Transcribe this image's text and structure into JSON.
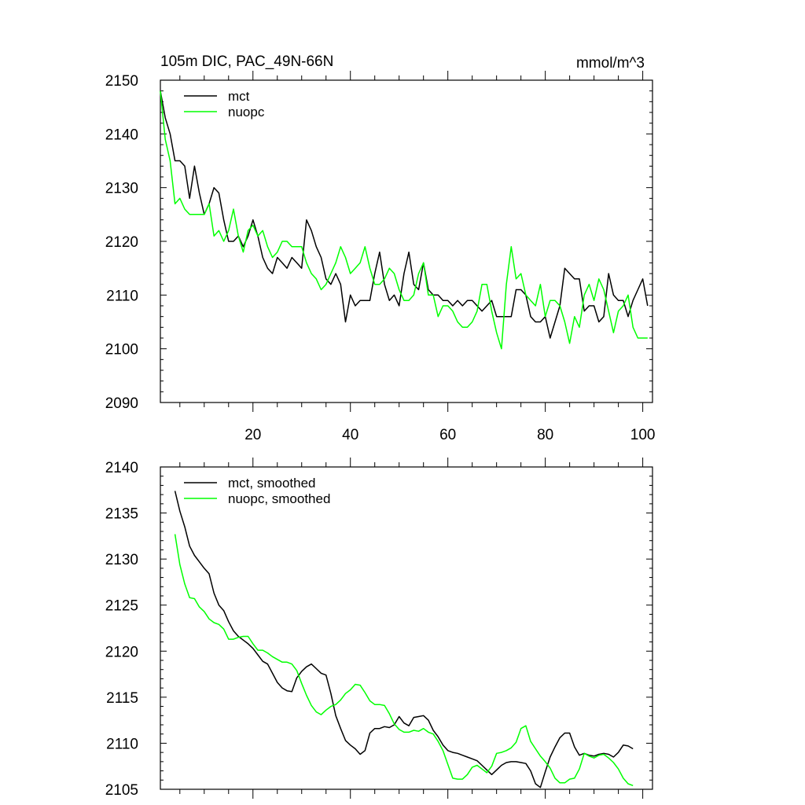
{
  "chart_data": [
    {
      "type": "line",
      "title": "105m DIC, PAC_49N-66N",
      "units": "mmol/m^3",
      "xlim": [
        1,
        102
      ],
      "ylim": [
        2090,
        2150
      ],
      "x_ticks": [
        20,
        40,
        60,
        80,
        100
      ],
      "y_ticks": [
        2090,
        2100,
        2110,
        2120,
        2130,
        2140,
        2150
      ],
      "x_tick_labels": [
        "20",
        "40",
        "60",
        "80",
        "100"
      ],
      "y_tick_labels": [
        "2090",
        "2100",
        "2110",
        "2120",
        "2130",
        "2140",
        "2150"
      ],
      "legend": "top-left",
      "series": [
        {
          "name": "mct",
          "color": "#000000",
          "x": [
            1,
            2,
            3,
            4,
            5,
            6,
            7,
            8,
            9,
            10,
            11,
            12,
            13,
            14,
            15,
            16,
            17,
            18,
            19,
            20,
            21,
            22,
            23,
            24,
            25,
            26,
            27,
            28,
            29,
            30,
            31,
            32,
            33,
            34,
            35,
            36,
            37,
            38,
            39,
            40,
            41,
            42,
            43,
            44,
            45,
            46,
            47,
            48,
            49,
            50,
            51,
            52,
            53,
            54,
            55,
            56,
            57,
            58,
            59,
            60,
            61,
            62,
            63,
            64,
            65,
            66,
            67,
            68,
            69,
            70,
            71,
            72,
            73,
            74,
            75,
            76,
            77,
            78,
            79,
            80,
            81,
            82,
            83,
            84,
            85,
            86,
            87,
            88,
            89,
            90,
            91,
            92,
            93,
            94,
            95,
            96,
            97,
            98,
            99,
            100,
            101
          ],
          "values": [
            2148,
            2143,
            2140,
            2135,
            2135,
            2134,
            2128,
            2134,
            2129,
            2125,
            2127,
            2130,
            2129,
            2124,
            2120,
            2120,
            2121,
            2119,
            2121,
            2124,
            2121,
            2117,
            2115,
            2114,
            2117,
            2116,
            2115,
            2117,
            2116,
            2115,
            2124,
            2122,
            2119,
            2117,
            2113,
            2112,
            2114,
            2112,
            2105,
            2110,
            2108,
            2109,
            2109,
            2109,
            2114,
            2118,
            2112,
            2109,
            2110,
            2108,
            2114,
            2118,
            2112,
            2111,
            2116,
            2111,
            2110,
            2110,
            2109,
            2109,
            2108,
            2109,
            2108,
            2109,
            2109,
            2108,
            2107,
            2108,
            2109,
            2106,
            2106,
            2106,
            2106,
            2111,
            2111,
            2110,
            2106,
            2105,
            2105,
            2106,
            2102,
            2105,
            2108,
            2115,
            2114,
            2113,
            2113,
            2107,
            2108,
            2108,
            2105,
            2106,
            2114,
            2110,
            2109,
            2109,
            2106,
            2109,
            2111,
            2113,
            2108
          ]
        },
        {
          "name": "nuopc",
          "color": "#00ff00",
          "x": [
            1,
            2,
            3,
            4,
            5,
            6,
            7,
            8,
            9,
            10,
            11,
            12,
            13,
            14,
            15,
            16,
            17,
            18,
            19,
            20,
            21,
            22,
            23,
            24,
            25,
            26,
            27,
            28,
            29,
            30,
            31,
            32,
            33,
            34,
            35,
            36,
            37,
            38,
            39,
            40,
            41,
            42,
            43,
            44,
            45,
            46,
            47,
            48,
            49,
            50,
            51,
            52,
            53,
            54,
            55,
            56,
            57,
            58,
            59,
            60,
            61,
            62,
            63,
            64,
            65,
            66,
            67,
            68,
            69,
            70,
            71,
            72,
            73,
            74,
            75,
            76,
            77,
            78,
            79,
            80,
            81,
            82,
            83,
            84,
            85,
            86,
            87,
            88,
            89,
            90,
            91,
            92,
            93,
            94,
            95,
            96,
            97,
            98,
            99,
            100,
            101
          ],
          "values": [
            2148,
            2139,
            2135,
            2127,
            2128,
            2126,
            2125,
            2125,
            2125,
            2125,
            2127,
            2121,
            2122,
            2120,
            2122,
            2126,
            2121,
            2118,
            2122,
            2123,
            2121,
            2122,
            2119,
            2117,
            2118,
            2120,
            2120,
            2119,
            2119,
            2119,
            2116,
            2114,
            2113,
            2111,
            2112,
            2114,
            2116,
            2119,
            2117,
            2114,
            2115,
            2116,
            2119,
            2115,
            2112,
            2112,
            2113,
            2115,
            2114,
            2111,
            2109,
            2109,
            2110,
            2114,
            2116,
            2110,
            2110,
            2106,
            2108,
            2108,
            2107,
            2105,
            2104,
            2104,
            2105,
            2107,
            2112,
            2112,
            2107,
            2103,
            2100,
            2112,
            2119,
            2113,
            2114,
            2110,
            2109,
            2108,
            2112,
            2106,
            2109,
            2109,
            2108,
            2105,
            2101,
            2106,
            2104,
            2110,
            2112,
            2109,
            2113,
            2111,
            2107,
            2103,
            2107,
            2108,
            2110,
            2104,
            2102,
            2102,
            2102
          ]
        }
      ]
    },
    {
      "type": "line",
      "title": "",
      "units": "",
      "xlim": [
        1,
        102
      ],
      "ylim": [
        2105,
        2140
      ],
      "x_ticks": [
        20,
        40,
        60,
        80,
        100
      ],
      "y_ticks": [
        2105,
        2110,
        2115,
        2120,
        2125,
        2130,
        2135,
        2140
      ],
      "y_tick_labels": [
        "2105",
        "2110",
        "2115",
        "2120",
        "2125",
        "2130",
        "2135",
        "2140"
      ],
      "legend": "top-left",
      "series": [
        {
          "name": "mct, smoothed",
          "color": "#000000",
          "x": [
            4,
            5,
            6,
            7,
            8,
            9,
            10,
            11,
            12,
            13,
            14,
            15,
            16,
            17,
            18,
            19,
            20,
            21,
            22,
            23,
            24,
            25,
            26,
            27,
            28,
            29,
            30,
            31,
            32,
            33,
            34,
            35,
            36,
            37,
            38,
            39,
            40,
            41,
            42,
            43,
            44,
            45,
            46,
            47,
            48,
            49,
            50,
            51,
            52,
            53,
            54,
            55,
            56,
            57,
            58,
            59,
            60,
            61,
            62,
            63,
            64,
            65,
            66,
            67,
            68,
            69,
            70,
            71,
            72,
            73,
            74,
            75,
            76,
            77,
            78,
            79,
            80,
            81,
            82,
            83,
            84,
            85,
            86,
            87,
            88,
            89,
            90,
            91,
            92,
            93,
            94,
            95,
            96,
            97,
            98
          ],
          "values": [
            2137.4,
            2135.2,
            2133.5,
            2131.4,
            2130.4,
            2129.7,
            2129.0,
            2128.4,
            2126.3,
            2125.0,
            2124.4,
            2123.2,
            2122.2,
            2121.6,
            2121.2,
            2120.8,
            2120.3,
            2119.6,
            2118.9,
            2118.6,
            2117.6,
            2116.6,
            2116.0,
            2115.7,
            2115.6,
            2117.1,
            2117.8,
            2118.3,
            2118.6,
            2118.1,
            2117.6,
            2117.4,
            2115.4,
            2113.0,
            2111.6,
            2110.3,
            2109.8,
            2109.4,
            2108.8,
            2109.2,
            2111.1,
            2111.6,
            2111.6,
            2111.8,
            2111.7,
            2112.0,
            2112.9,
            2112.2,
            2111.9,
            2112.8,
            2112.9,
            2113.0,
            2112.5,
            2111.4,
            2110.7,
            2109.8,
            2109.2,
            2109.0,
            2108.9,
            2108.7,
            2108.5,
            2108.3,
            2108.1,
            2107.6,
            2107.1,
            2106.6,
            2107.1,
            2107.6,
            2107.9,
            2108.0,
            2108.0,
            2107.9,
            2107.8,
            2107.0,
            2105.6,
            2105.2,
            2106.9,
            2108.5,
            2109.6,
            2110.6,
            2111.1,
            2111.1,
            2109.6,
            2108.7,
            2108.9,
            2108.7,
            2108.6,
            2108.8,
            2108.9,
            2108.8,
            2108.5,
            2109.0,
            2109.8,
            2109.7,
            2109.4
          ]
        },
        {
          "name": "nuopc, smoothed",
          "color": "#00ff00",
          "x": [
            4,
            5,
            6,
            7,
            8,
            9,
            10,
            11,
            12,
            13,
            14,
            15,
            16,
            17,
            18,
            19,
            20,
            21,
            22,
            23,
            24,
            25,
            26,
            27,
            28,
            29,
            30,
            31,
            32,
            33,
            34,
            35,
            36,
            37,
            38,
            39,
            40,
            41,
            42,
            43,
            44,
            45,
            46,
            47,
            48,
            49,
            50,
            51,
            52,
            53,
            54,
            55,
            56,
            57,
            58,
            59,
            60,
            61,
            62,
            63,
            64,
            65,
            66,
            67,
            68,
            69,
            70,
            71,
            72,
            73,
            74,
            75,
            76,
            77,
            78,
            79,
            80,
            81,
            82,
            83,
            84,
            85,
            86,
            87,
            88,
            89,
            90,
            91,
            92,
            93,
            94,
            95,
            96,
            97,
            98
          ],
          "values": [
            2132.7,
            2129.4,
            2127.3,
            2125.8,
            2125.7,
            2124.8,
            2124.3,
            2123.5,
            2123.1,
            2122.9,
            2122.4,
            2121.3,
            2121.3,
            2121.5,
            2121.6,
            2121.6,
            2120.8,
            2120.1,
            2120.1,
            2119.8,
            2119.4,
            2119.1,
            2118.8,
            2118.8,
            2118.6,
            2117.9,
            2116.5,
            2115.2,
            2114.1,
            2113.4,
            2113.1,
            2113.6,
            2114.0,
            2114.2,
            2114.7,
            2115.4,
            2115.8,
            2116.4,
            2116.3,
            2115.5,
            2114.6,
            2114.2,
            2114.2,
            2114.1,
            2113.2,
            2112.1,
            2111.5,
            2111.2,
            2111.2,
            2111.4,
            2111.3,
            2111.6,
            2111.2,
            2111.0,
            2110.2,
            2109.2,
            2107.7,
            2106.2,
            2106.1,
            2106.1,
            2106.6,
            2107.4,
            2107.6,
            2107.2,
            2106.8,
            2107.5,
            2108.9,
            2109.0,
            2109.2,
            2109.5,
            2110.1,
            2111.6,
            2111.9,
            2110.2,
            2109.4,
            2108.6,
            2108.0,
            2107.3,
            2106.2,
            2105.7,
            2105.7,
            2106.1,
            2106.2,
            2107.2,
            2108.9,
            2108.6,
            2108.4,
            2108.7,
            2108.8,
            2108.4,
            2107.9,
            2107.2,
            2106.2,
            2105.6,
            2105.4
          ]
        }
      ]
    }
  ]
}
